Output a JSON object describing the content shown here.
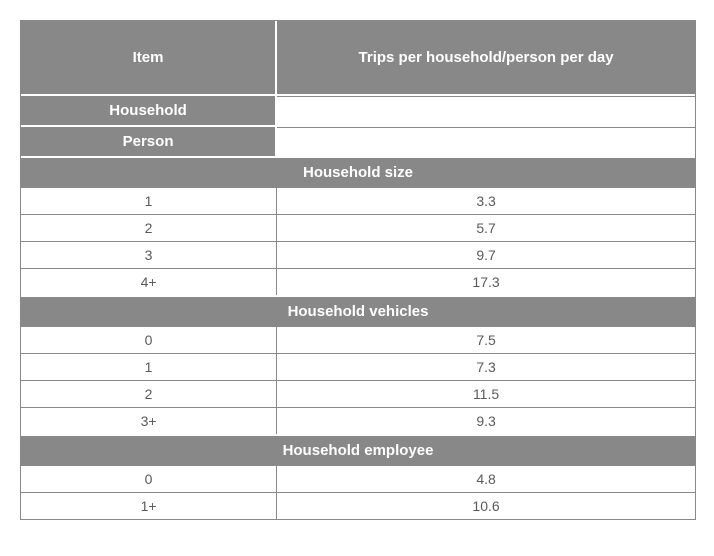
{
  "table": {
    "type": "table",
    "columns": [
      "Item",
      "Trips per household/person per day"
    ],
    "header_bg": "#888888",
    "header_fg": "#ffffff",
    "border_color": "#888888",
    "row_bg": "#ffffff",
    "row_fg": "#5a5a5a",
    "col_widths_pct": [
      38,
      62
    ],
    "header_fontsize": 15,
    "data_fontsize": 14,
    "subheaders": [
      {
        "label": "Household",
        "value": ""
      },
      {
        "label": "Person",
        "value": ""
      }
    ],
    "sections": [
      {
        "title": "Household size",
        "rows": [
          {
            "label": "1",
            "value": "3.3"
          },
          {
            "label": "2",
            "value": "5.7"
          },
          {
            "label": "3",
            "value": "9.7"
          },
          {
            "label": "4+",
            "value": "17.3"
          }
        ]
      },
      {
        "title": "Household vehicles",
        "rows": [
          {
            "label": "0",
            "value": "7.5"
          },
          {
            "label": "1",
            "value": "7.3"
          },
          {
            "label": "2",
            "value": "11.5"
          },
          {
            "label": "3+",
            "value": "9.3"
          }
        ]
      },
      {
        "title": "Household employee",
        "rows": [
          {
            "label": "0",
            "value": "4.8"
          },
          {
            "label": "1+",
            "value": "10.6"
          }
        ]
      }
    ]
  }
}
